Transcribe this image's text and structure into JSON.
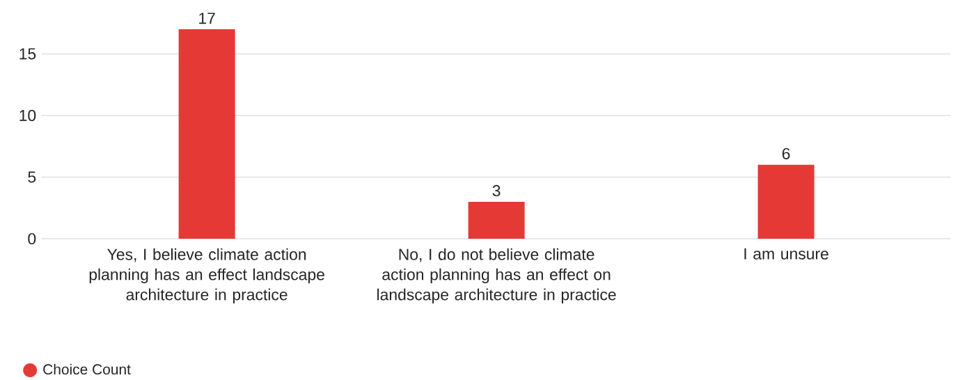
{
  "chart_data": {
    "type": "bar",
    "categories": [
      "Yes, I believe climate action planning has an effect landscape architecture in practice",
      "No, I do not believe climate action planning has an effect on landscape architecture in practice",
      "I am unsure"
    ],
    "series": [
      {
        "name": "Choice Count",
        "color": "#e53935",
        "values": [
          17,
          3,
          6
        ]
      }
    ],
    "ylim": [
      0,
      17
    ],
    "yticks": [
      0,
      5,
      10,
      15
    ],
    "grid": "y",
    "data_labels": true,
    "legend": "bottom left"
  }
}
